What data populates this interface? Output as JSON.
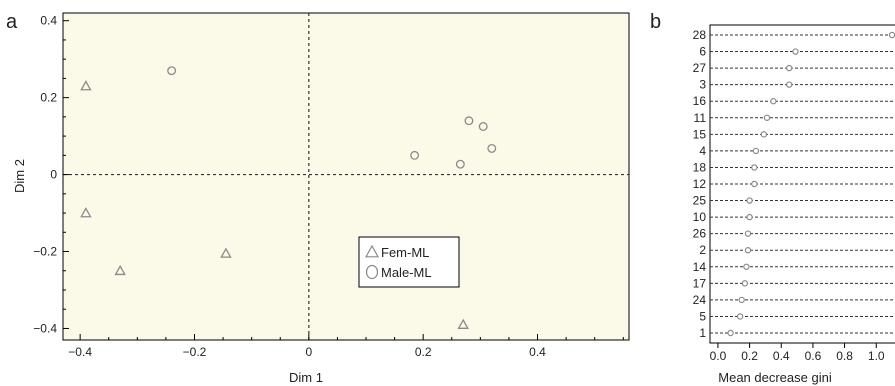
{
  "colors": {
    "plot_bg": "#fbf9e7",
    "marker_stroke": "#8a8a8a",
    "axis": "#000000",
    "dotted_lines": "#333333"
  },
  "chart_data": [
    {
      "panel": "a",
      "type": "scatter",
      "xlabel": "Dim 1",
      "ylabel": "Dim 2",
      "xlim": [
        -0.43,
        0.56
      ],
      "ylim": [
        -0.43,
        0.42
      ],
      "xticks": [
        "-0.4",
        "-0.2",
        "0",
        "0.2",
        "0.4"
      ],
      "yticks": [
        "-0.4",
        "-0.2",
        "0",
        "0.2",
        "0.4"
      ],
      "reference_lines": {
        "x": 0,
        "y": 0,
        "style": "dashed"
      },
      "legend_position": "bottom-center",
      "series": [
        {
          "name": "Fem-ML",
          "marker": "triangle",
          "points": [
            {
              "x": -0.39,
              "y": 0.23
            },
            {
              "x": -0.39,
              "y": -0.1
            },
            {
              "x": -0.33,
              "y": -0.25
            },
            {
              "x": -0.145,
              "y": -0.205
            },
            {
              "x": 0.27,
              "y": -0.39
            }
          ]
        },
        {
          "name": "Male-ML",
          "marker": "circle",
          "points": [
            {
              "x": -0.24,
              "y": 0.27
            },
            {
              "x": 0.185,
              "y": 0.05
            },
            {
              "x": 0.265,
              "y": 0.027
            },
            {
              "x": 0.28,
              "y": 0.14
            },
            {
              "x": 0.305,
              "y": 0.125
            },
            {
              "x": 0.32,
              "y": 0.068
            }
          ]
        }
      ]
    },
    {
      "panel": "b",
      "type": "dotplot",
      "xlabel": "Mean decrease gini",
      "xlim": [
        -0.05,
        1.15
      ],
      "xticks": [
        "0.0",
        "0.2",
        "0.4",
        "0.6",
        "0.8",
        "1.0"
      ],
      "categories": [
        "28",
        "6",
        "27",
        "3",
        "16",
        "11",
        "15",
        "4",
        "18",
        "12",
        "25",
        "10",
        "26",
        "2",
        "14",
        "17",
        "24",
        "5",
        "1"
      ],
      "values": [
        1.1,
        0.49,
        0.45,
        0.45,
        0.35,
        0.31,
        0.29,
        0.24,
        0.23,
        0.23,
        0.2,
        0.2,
        0.19,
        0.19,
        0.18,
        0.17,
        0.15,
        0.14,
        0.08
      ]
    }
  ]
}
